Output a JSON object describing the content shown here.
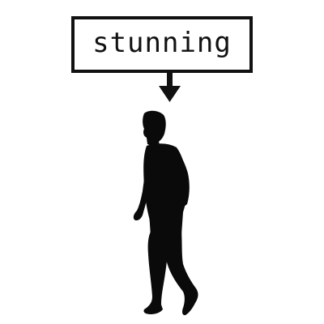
{
  "label": {
    "text": "stunning"
  },
  "pointer": {
    "icon": "down-arrow-icon"
  },
  "figure": {
    "icon": "walking-person-silhouette"
  },
  "colors": {
    "background": "#ffffff",
    "ink": "#111111"
  }
}
